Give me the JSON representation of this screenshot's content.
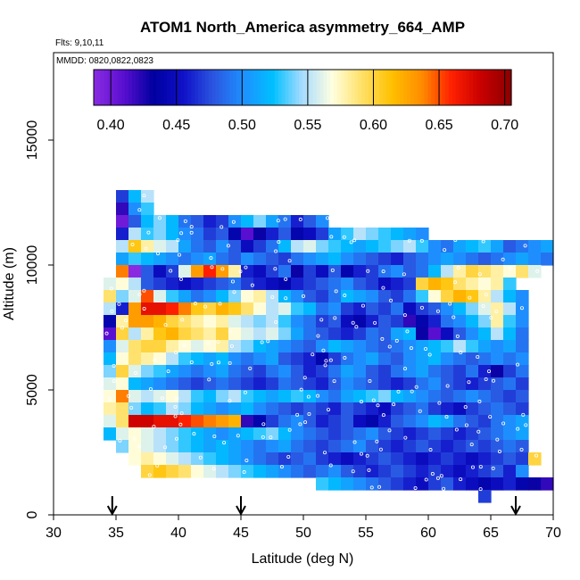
{
  "chart_data": {
    "type": "heatmap",
    "title": "ATOM1 North_America asymmetry_664_AMP",
    "flights_note": "Flts: 9,10,11",
    "dates_note": "MMDD: 0820,0822,0823",
    "xlabel": "Latitude (deg N)",
    "ylabel": "Altitude (m)",
    "xlim": [
      30,
      70
    ],
    "ylim": [
      0,
      18500
    ],
    "x_ticks": [
      30,
      35,
      40,
      45,
      50,
      55,
      60,
      65,
      70
    ],
    "y_ticks": [
      0,
      5000,
      10000,
      15000
    ],
    "colorbar": {
      "range": [
        0.387,
        0.705
      ],
      "ticks": [
        0.4,
        0.45,
        0.5,
        0.55,
        0.6,
        0.65,
        0.7
      ],
      "tick_labels": [
        "0.40",
        "0.45",
        "0.50",
        "0.55",
        "0.60",
        "0.65",
        "0.70"
      ],
      "colors": [
        "#8a2be2",
        "#5a0fd0",
        "#0000a0",
        "#1010c8",
        "#2a55e0",
        "#1e8fff",
        "#00bfff",
        "#a8dcff",
        "#ffffe0",
        "#ffe066",
        "#ffc000",
        "#ff8c00",
        "#ff2000",
        "#c80000",
        "#8b0000"
      ]
    },
    "flight_markers_lat": [
      34.7,
      45.0,
      67.0
    ],
    "bin_size": {
      "lat_deg": 1,
      "alt_m": 500
    },
    "rows": [
      {
        "alt": 12750,
        "lat_start": 35,
        "values": [
          0.47,
          0.52,
          0.55
        ]
      },
      {
        "alt": 12250,
        "lat_start": 35,
        "values": [
          0.42,
          0.5,
          0.53
        ]
      },
      {
        "alt": 11750,
        "lat_start": 35,
        "values": [
          0.4,
          0.48,
          0.52,
          0.54,
          0.52,
          0.49,
          0.48,
          0.46,
          0.47,
          0.5,
          0.52,
          0.54,
          0.51,
          0.49,
          0.46,
          0.48,
          0.5
        ]
      },
      {
        "alt": 11250,
        "lat_start": 35,
        "values": [
          0.46,
          0.55,
          0.53,
          0.54,
          0.52,
          0.5,
          0.49,
          0.47,
          0.48,
          0.44,
          0.41,
          0.43,
          0.46,
          0.48,
          0.44,
          0.45,
          0.47,
          0.51,
          0.53,
          0.55,
          0.54,
          0.53,
          0.52,
          0.51,
          0.5
        ]
      },
      {
        "alt": 10750,
        "lat_start": 35,
        "values": [
          0.55,
          0.61,
          0.58,
          0.56,
          0.55,
          0.51,
          0.49,
          0.48,
          0.5,
          0.48,
          0.45,
          0.47,
          0.49,
          0.52,
          0.55,
          0.56,
          0.54,
          0.53,
          0.52,
          0.51,
          0.52,
          0.53,
          0.54,
          0.55,
          0.53,
          0.5,
          0.49,
          0.51,
          0.52,
          0.53,
          0.51,
          0.48,
          0.49,
          0.5,
          0.51
        ]
      },
      {
        "alt": 10250,
        "lat_start": 35,
        "values": [
          0.51,
          0.53,
          0.52,
          0.51,
          0.5,
          0.49,
          0.5,
          0.51,
          0.49,
          0.48,
          0.5,
          0.49,
          0.48,
          0.47,
          0.49,
          0.5,
          0.51,
          0.52,
          0.5,
          0.49,
          0.48,
          0.47,
          0.46,
          0.48,
          0.49,
          0.5,
          0.51,
          0.5,
          0.49,
          0.48,
          0.49,
          0.5,
          0.51,
          0.5,
          0.49
        ]
      },
      {
        "alt": 9750,
        "lat_start": 35,
        "values": [
          0.64,
          0.38,
          0.48,
          0.45,
          0.47,
          0.56,
          0.63,
          0.66,
          0.63,
          0.58,
          0.46,
          0.45,
          0.47,
          0.49,
          0.43,
          0.47,
          0.45,
          0.48,
          0.44,
          0.46,
          0.47,
          0.49,
          0.5,
          0.48,
          0.49,
          0.52,
          0.55,
          0.58,
          0.6,
          0.59,
          0.58,
          0.57,
          0.59,
          0.56
        ]
      },
      {
        "alt": 9250,
        "lat_start": 34,
        "values": [
          0.56,
          0.57,
          0.55,
          0.48,
          0.47,
          0.46,
          0.45,
          0.46,
          0.47,
          0.48,
          0.49,
          0.47,
          0.46,
          0.45,
          0.44,
          0.46,
          0.47,
          0.48,
          0.49,
          0.5,
          0.48,
          0.47,
          0.45,
          0.46,
          0.47,
          0.6,
          0.62,
          0.61,
          0.59,
          0.58,
          0.57,
          0.58,
          0.53
        ]
      },
      {
        "alt": 8750,
        "lat_start": 34,
        "values": [
          0.59,
          0.54,
          0.56,
          0.65,
          0.56,
          0.53,
          0.51,
          0.49,
          0.5,
          0.52,
          0.54,
          0.57,
          0.58,
          0.55,
          0.52,
          0.5,
          0.48,
          0.47,
          0.49,
          0.52,
          0.51,
          0.5,
          0.48,
          0.47,
          0.49,
          0.53,
          0.57,
          0.6,
          0.62,
          0.61,
          0.58,
          0.55,
          0.52,
          0.5
        ]
      },
      {
        "alt": 8250,
        "lat_start": 34,
        "values": [
          0.55,
          0.46,
          0.63,
          0.67,
          0.67,
          0.66,
          0.64,
          0.61,
          0.6,
          0.62,
          0.61,
          0.59,
          0.57,
          0.55,
          0.56,
          0.53,
          0.52,
          0.49,
          0.5,
          0.47,
          0.46,
          0.48,
          0.47,
          0.49,
          0.45,
          0.47,
          0.48,
          0.5,
          0.52,
          0.54,
          0.56,
          0.58,
          0.55,
          0.5
        ]
      },
      {
        "alt": 7750,
        "lat_start": 34,
        "values": [
          0.44,
          0.58,
          0.63,
          0.63,
          0.62,
          0.6,
          0.59,
          0.58,
          0.57,
          0.58,
          0.56,
          0.55,
          0.54,
          0.55,
          0.53,
          0.5,
          0.49,
          0.47,
          0.48,
          0.45,
          0.44,
          0.46,
          0.48,
          0.47,
          0.42,
          0.44,
          0.46,
          0.49,
          0.5,
          0.52,
          0.54,
          0.58,
          0.53,
          0.5
        ]
      },
      {
        "alt": 7250,
        "lat_start": 34,
        "values": [
          0.41,
          0.6,
          0.55,
          0.58,
          0.61,
          0.62,
          0.6,
          0.59,
          0.58,
          0.6,
          0.57,
          0.56,
          0.55,
          0.56,
          0.54,
          0.51,
          0.49,
          0.48,
          0.47,
          0.46,
          0.47,
          0.49,
          0.48,
          0.51,
          0.52,
          0.43,
          0.41,
          0.45,
          0.48,
          0.5,
          0.52,
          0.55,
          0.52,
          0.49
        ]
      },
      {
        "alt": 6750,
        "lat_start": 34,
        "values": [
          0.5,
          0.56,
          0.59,
          0.6,
          0.6,
          0.58,
          0.57,
          0.56,
          0.57,
          0.58,
          0.55,
          0.54,
          0.52,
          0.51,
          0.5,
          0.49,
          0.48,
          0.5,
          0.52,
          0.51,
          0.5,
          0.49,
          0.48,
          0.49,
          0.5,
          0.51,
          0.52,
          0.53,
          0.55,
          0.53,
          0.51,
          0.5,
          0.51,
          0.49
        ]
      },
      {
        "alt": 6250,
        "lat_start": 34,
        "values": [
          0.52,
          0.57,
          0.59,
          0.58,
          0.57,
          0.55,
          0.53,
          0.52,
          0.51,
          0.52,
          0.5,
          0.49,
          0.5,
          0.51,
          0.48,
          0.47,
          0.46,
          0.44,
          0.47,
          0.49,
          0.5,
          0.51,
          0.49,
          0.48,
          0.5,
          0.51,
          0.52,
          0.5,
          0.49,
          0.48,
          0.49,
          0.5,
          0.49,
          0.5
        ]
      },
      {
        "alt": 5750,
        "lat_start": 34,
        "values": [
          0.54,
          0.6,
          0.56,
          0.54,
          0.53,
          0.51,
          0.5,
          0.49,
          0.5,
          0.51,
          0.49,
          0.48,
          0.47,
          0.49,
          0.5,
          0.48,
          0.46,
          0.47,
          0.49,
          0.51,
          0.5,
          0.48,
          0.47,
          0.49,
          0.5,
          0.51,
          0.49,
          0.48,
          0.47,
          0.49,
          0.46,
          0.43,
          0.47,
          0.49
        ]
      },
      {
        "alt": 5250,
        "lat_start": 34,
        "values": [
          0.56,
          0.57,
          0.52,
          0.51,
          0.5,
          0.49,
          0.48,
          0.47,
          0.48,
          0.49,
          0.48,
          0.47,
          0.46,
          0.47,
          0.49,
          0.48,
          0.47,
          0.46,
          0.48,
          0.5,
          0.49,
          0.48,
          0.47,
          0.46,
          0.47,
          0.49,
          0.5,
          0.48,
          0.47,
          0.46,
          0.47,
          0.48,
          0.49,
          0.47
        ]
      },
      {
        "alt": 4750,
        "lat_start": 34,
        "values": [
          0.57,
          0.64,
          0.56,
          0.55,
          0.56,
          0.57,
          0.55,
          0.53,
          0.52,
          0.54,
          0.55,
          0.53,
          0.52,
          0.51,
          0.52,
          0.53,
          0.52,
          0.5,
          0.49,
          0.51,
          0.52,
          0.53,
          0.54,
          0.52,
          0.51,
          0.5,
          0.49,
          0.48,
          0.49,
          0.5,
          0.49,
          0.48,
          0.47,
          0.48
        ]
      },
      {
        "alt": 4250,
        "lat_start": 34,
        "values": [
          0.58,
          0.59,
          0.54,
          0.52,
          0.53,
          0.55,
          0.54,
          0.52,
          0.51,
          0.5,
          0.51,
          0.52,
          0.5,
          0.49,
          0.48,
          0.47,
          0.48,
          0.47,
          0.46,
          0.48,
          0.47,
          0.46,
          0.45,
          0.47,
          0.48,
          0.49,
          0.47,
          0.46,
          0.45,
          0.47,
          0.48,
          0.49,
          0.48,
          0.47
        ]
      },
      {
        "alt": 3750,
        "lat_start": 34,
        "values": [
          0.56,
          0.59,
          0.68,
          0.68,
          0.67,
          0.67,
          0.66,
          0.65,
          0.64,
          0.63,
          0.62,
          0.42,
          0.44,
          0.47,
          0.49,
          0.5,
          0.48,
          0.46,
          0.47,
          0.48,
          0.45,
          0.44,
          0.46,
          0.48,
          0.49,
          0.5,
          0.52,
          0.51,
          0.49,
          0.48,
          0.47,
          0.49,
          0.5,
          0.51
        ]
      },
      {
        "alt": 3250,
        "lat_start": 34,
        "values": [
          0.52,
          0.56,
          0.57,
          0.56,
          0.55,
          0.54,
          0.53,
          0.52,
          0.51,
          0.5,
          0.51,
          0.52,
          0.53,
          0.54,
          0.52,
          0.5,
          0.49,
          0.48,
          0.47,
          0.48,
          0.49,
          0.5,
          0.48,
          0.47,
          0.46,
          0.47,
          0.48,
          0.47,
          0.46,
          0.47,
          0.48,
          0.49,
          0.5,
          0.51
        ]
      },
      {
        "alt": 2750,
        "lat_start": 35,
        "values": [
          0.54,
          0.57,
          0.56,
          0.55,
          0.54,
          0.53,
          0.52,
          0.51,
          0.52,
          0.51,
          0.5,
          0.49,
          0.5,
          0.51,
          0.49,
          0.48,
          0.47,
          0.48,
          0.49,
          0.5,
          0.48,
          0.47,
          0.46,
          0.47,
          0.48,
          0.47,
          0.46,
          0.47,
          0.48,
          0.47,
          0.48,
          0.49,
          0.48
        ]
      },
      {
        "alt": 2250,
        "lat_start": 36,
        "values": [
          0.57,
          0.58,
          0.57,
          0.56,
          0.55,
          0.54,
          0.53,
          0.52,
          0.51,
          0.5,
          0.49,
          0.48,
          0.47,
          0.48,
          0.49,
          0.47,
          0.46,
          0.45,
          0.46,
          0.47,
          0.48,
          0.47,
          0.46,
          0.45,
          0.46,
          0.47,
          0.46,
          0.45,
          0.46,
          0.47,
          0.48,
          0.47,
          0.6
        ]
      },
      {
        "alt": 1750,
        "lat_start": 37,
        "values": [
          0.6,
          0.61,
          0.6,
          0.59,
          0.57,
          0.56,
          0.55,
          0.54,
          0.53,
          0.52,
          0.51,
          0.5,
          0.49,
          0.48,
          0.49,
          0.5,
          0.48,
          0.47,
          0.46,
          0.47,
          0.48,
          0.47,
          0.46,
          0.47,
          0.46,
          0.45,
          0.46,
          0.47,
          0.48,
          0.46,
          0.5
        ]
      },
      {
        "alt": 1250,
        "lat_start": 51,
        "values": [
          0.53,
          0.52,
          0.51,
          0.5,
          0.49,
          0.48,
          0.47,
          0.46,
          0.45,
          0.47,
          0.48,
          0.46,
          0.45,
          0.44,
          0.45,
          0.46,
          0.44,
          0.43,
          0.42
        ]
      },
      {
        "alt": 750,
        "lat_start": 64,
        "values": [
          0.47
        ]
      }
    ]
  }
}
